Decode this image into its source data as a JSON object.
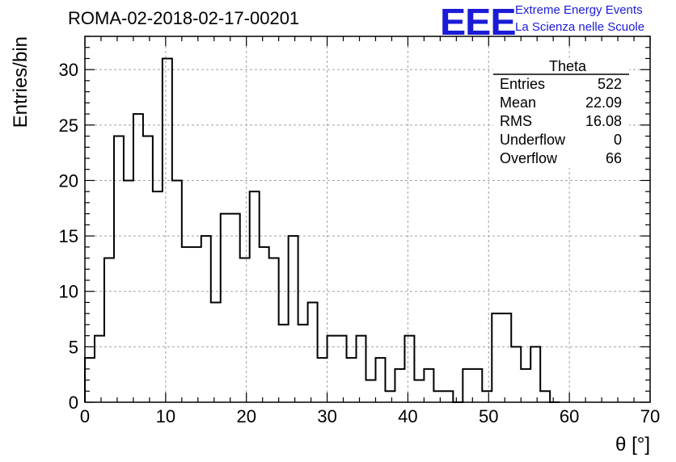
{
  "header": {
    "title": "ROMA-02-2018-02-17-00201",
    "logo_mark": "EEE",
    "logo_line1": "Extreme Energy Events",
    "logo_line2": "La Scienza nelle Scuole"
  },
  "stats_box": {
    "title": "Theta",
    "rows": [
      {
        "label": "Entries",
        "value": "522"
      },
      {
        "label": "Mean",
        "value": "22.09"
      },
      {
        "label": "RMS",
        "value": "16.08"
      },
      {
        "label": "Underflow",
        "value": "0"
      },
      {
        "label": "Overflow",
        "value": "66"
      }
    ]
  },
  "colors": {
    "line": "#000000",
    "grid": "#a0a0a0",
    "logo": "#1b1bd6"
  },
  "chart_data": {
    "type": "bar",
    "histogram_style": "step",
    "bin_width": 1.2,
    "bin_start": 0,
    "values": [
      4,
      6,
      13,
      24,
      20,
      26,
      24,
      19,
      31,
      20,
      14,
      14,
      15,
      9,
      17,
      17,
      13,
      19,
      14,
      13,
      7,
      15,
      7,
      9,
      4,
      6,
      6,
      4,
      6,
      2,
      4,
      1,
      3,
      6,
      2,
      3,
      1,
      1,
      0,
      3,
      3,
      1,
      8,
      8,
      5,
      3,
      5,
      1,
      0
    ],
    "xlabel": "θ [°]",
    "ylabel": "Entries/bin",
    "xlim": [
      0,
      70
    ],
    "ylim": [
      0,
      33
    ],
    "x_ticks": [
      0,
      10,
      20,
      30,
      40,
      50,
      60,
      70
    ],
    "y_ticks": [
      0,
      5,
      10,
      15,
      20,
      25,
      30
    ],
    "grid": true
  }
}
